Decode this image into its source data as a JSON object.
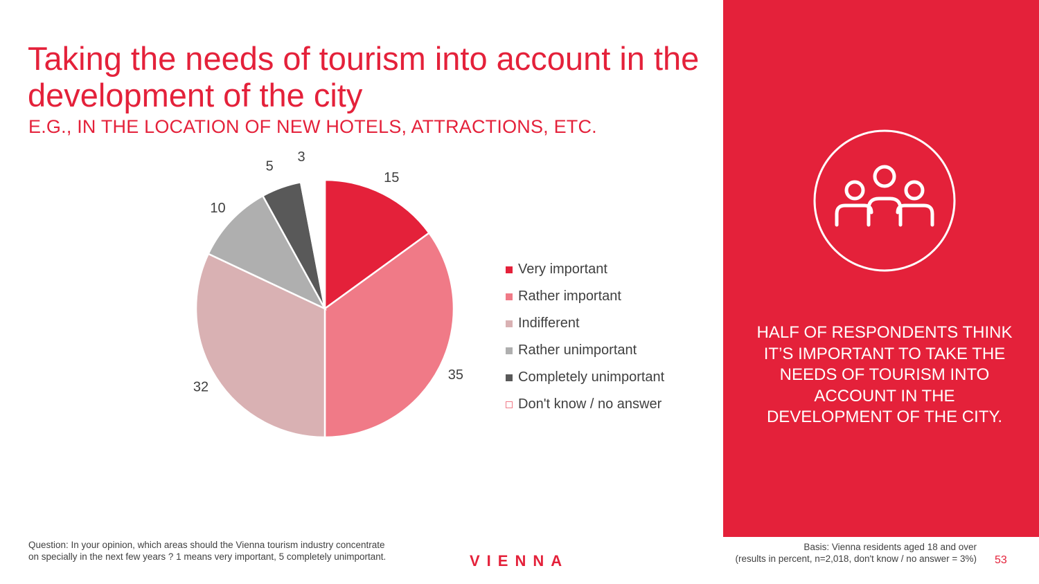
{
  "slide": {
    "title": "Taking the needs of tourism into account in the development of the city",
    "subtitle": "E.G., IN THE LOCATION OF NEW HOTELS, ATTRACTIONS, ETC."
  },
  "chart_data": {
    "type": "pie",
    "title": "Taking the needs of tourism into account in the development of the city",
    "unit": "percent",
    "categories": [
      "Very important",
      "Rather important",
      "Indifferent",
      "Rather unimportant",
      "Completely unimportant",
      "Don't know / no answer"
    ],
    "values": [
      15,
      35,
      32,
      10,
      5,
      3
    ],
    "colors": [
      "#e4213a",
      "#f07a87",
      "#d9b1b3",
      "#afafaf",
      "#595959",
      "#ffffff"
    ],
    "legend_position": "right"
  },
  "panel": {
    "icon": "people-group-icon",
    "background": "#e4213a",
    "text": "HALF OF RESPONDENTS THINK IT’S IMPORTANT TO TAKE THE NEEDS OF TOURISM INTO ACCOUNT IN THE DEVELOPMENT OF THE CITY."
  },
  "footer": {
    "question": "Question: In your opinion, which areas should the Vienna tourism industry concentrate on specially in the next few years ? 1 means very important, 5 completely unimportant.",
    "logo": "VIENNA",
    "basis_line1": "Basis: Vienna residents aged 18 and over",
    "basis_line2": "(results in percent, n=2,018, don't know / no answer = 3%)",
    "page_number": "53"
  }
}
